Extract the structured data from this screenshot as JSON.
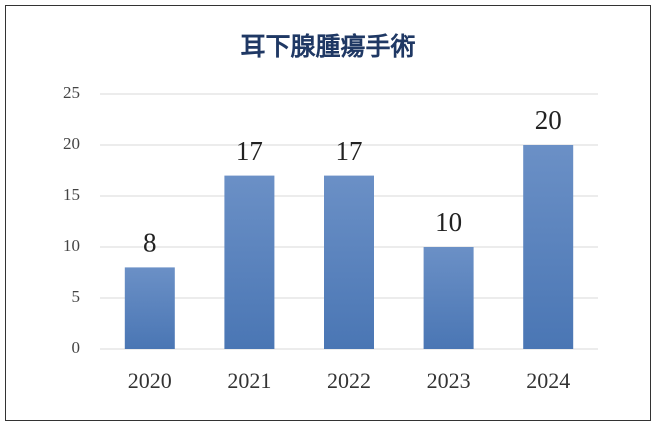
{
  "chart_data": {
    "type": "bar",
    "title": "耳下腺腫瘍手術",
    "categories": [
      "2020",
      "2021",
      "2022",
      "2023",
      "2024"
    ],
    "values": [
      8,
      17,
      17,
      10,
      20
    ],
    "color": "#4a76b4",
    "ylim": [
      0,
      25
    ],
    "yticks": [
      0,
      5,
      10,
      15,
      20,
      25
    ],
    "grid": true
  }
}
